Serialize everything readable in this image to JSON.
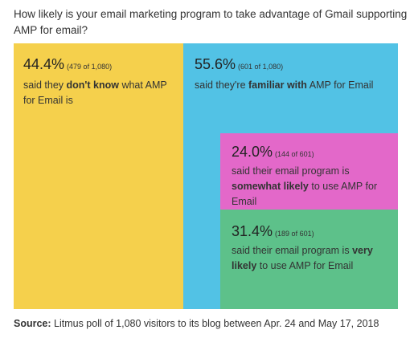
{
  "title": "How likely is your email marketing program to take advantage of Gmail supporting AMP for email?",
  "colors": {
    "yellow": "#F5D04C",
    "blue": "#52C2E5",
    "pink": "#E368C9",
    "green": "#5DC18A"
  },
  "blocks": {
    "dont_know": {
      "pct": "44.4%",
      "count": "(479 of 1,080)",
      "desc_pre": "said they ",
      "desc_bold": "don't know",
      "desc_post": " what AMP for Email is"
    },
    "familiar": {
      "pct": "55.6%",
      "count": "(601 of 1,080)",
      "desc_pre": "said they're ",
      "desc_bold": "familiar with",
      "desc_post": " AMP for Email"
    },
    "somewhat": {
      "pct": "24.0%",
      "count": "(144 of 601)",
      "desc_pre": "said their email program is ",
      "desc_bold": "somewhat likely",
      "desc_post": " to use AMP for Email"
    },
    "very": {
      "pct": "31.4%",
      "count": "(189 of 601)",
      "desc_pre": "said their email program is ",
      "desc_bold": "very likely",
      "desc_post": " to use AMP for Email"
    }
  },
  "source": {
    "label": "Source:",
    "text": " Litmus poll of 1,080 visitors to its blog between Apr. 24 and May 17, 2018"
  },
  "chart_data": {
    "type": "treemap",
    "title": "How likely is your email marketing program to take advantage of Gmail supporting AMP for email?",
    "total": 1080,
    "items": [
      {
        "label": "don't know what AMP for Email is",
        "percent": 44.4,
        "count": 479,
        "of": 1080
      },
      {
        "label": "familiar with AMP for Email",
        "percent": 55.6,
        "count": 601,
        "of": 1080,
        "children": [
          {
            "label": "somewhat likely to use AMP for Email",
            "percent": 24.0,
            "count": 144,
            "of": 601
          },
          {
            "label": "very likely to use AMP for Email",
            "percent": 31.4,
            "count": 189,
            "of": 601
          }
        ]
      }
    ]
  }
}
